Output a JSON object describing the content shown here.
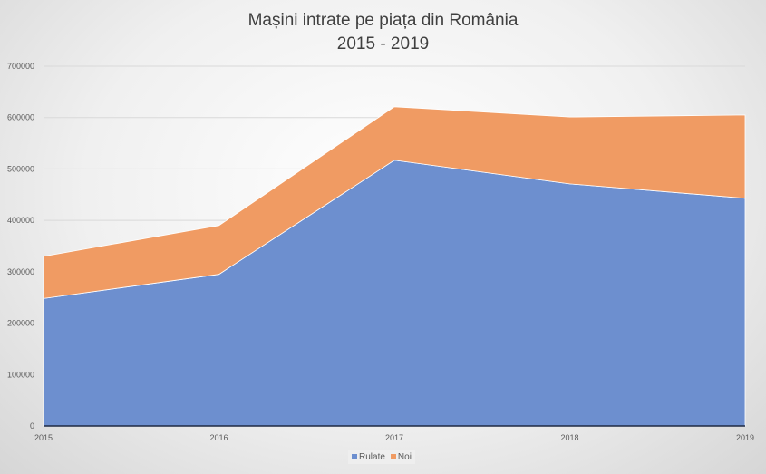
{
  "chart_data": {
    "type": "area",
    "stacked": true,
    "title": "Mașini intrate pe piața din România",
    "subtitle": "2015 - 2019",
    "categories": [
      "2015",
      "2016",
      "2017",
      "2018",
      "2019"
    ],
    "series": [
      {
        "name": "Rulate",
        "color": "#6d8fcf",
        "values": [
          248000,
          295000,
          517000,
          471000,
          443000
        ]
      },
      {
        "name": "Noi",
        "color": "#f09b63",
        "values": [
          82000,
          95000,
          104000,
          130000,
          162000
        ]
      }
    ],
    "ylim": [
      0,
      700000
    ],
    "yticks": [
      "0",
      "100000",
      "200000",
      "300000",
      "400000",
      "500000",
      "600000",
      "700000"
    ],
    "grid": true,
    "legend": "bottom"
  }
}
